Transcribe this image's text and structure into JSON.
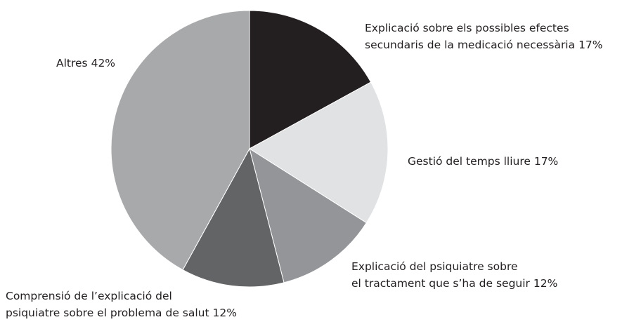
{
  "chart_data": {
    "type": "pie",
    "categories": [
      "Explicació sobre els possibles efectes\nsecundaris de la medicació necessària",
      "Gestió del temps lliure",
      "Explicació del psiquiatre sobre\nel tractament que s’ha de seguir",
      "Comprensió de l’explicació del\npsiquiatre sobre el problema de salut",
      "Altres"
    ],
    "values": [
      17,
      17,
      12,
      12,
      42
    ],
    "value_labels": [
      "17%",
      "17%",
      "12%",
      "12%",
      "42%"
    ],
    "colors": [
      "#231f20",
      "#e1e2e3",
      "#939598",
      "#636466",
      "#a8a9ab"
    ]
  }
}
